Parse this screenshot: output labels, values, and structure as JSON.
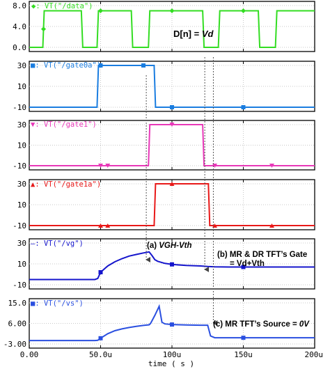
{
  "chart_data": {
    "type": "line",
    "x_unit": "s",
    "xlabel": "time ( s )",
    "xlim": [
      0,
      0.0002
    ],
    "x_ticks": [
      0,
      5e-05,
      0.0001,
      0.00015,
      0.0002
    ],
    "x_tick_labels": [
      "0.00",
      "50.0u",
      "100u",
      "150u",
      "200u"
    ],
    "grid": true,
    "panels": [
      {
        "name": "VT(\"/data\")",
        "legend_marker": "◆",
        "color": "#33dd22",
        "ylim": [
          0,
          8
        ],
        "y_ticks": [
          0,
          4,
          8
        ],
        "y_tick_labels": [
          "0.0",
          "4.0",
          "8.0"
        ],
        "x": [
          0,
          9.5e-06,
          1.05e-05,
          3.65e-05,
          3.75e-05,
          4.75e-05,
          4.85e-05,
          7.15e-05,
          7.25e-05,
          8.35e-05,
          8.45e-05,
          0.0001215,
          0.0001225,
          0.0001325,
          0.0001335,
          0.0001605,
          0.0001615,
          0.0001725,
          0.0001735,
          0.0002
        ],
        "y": [
          0,
          0,
          7,
          7,
          0,
          0,
          7,
          7,
          0,
          0,
          7,
          7,
          0,
          0,
          7,
          7,
          0,
          0,
          7,
          7
        ],
        "marker_x": [
          1e-05,
          5e-05,
          0.0001,
          0.00015
        ]
      },
      {
        "name": "VT(\"/gate0a\")",
        "legend_marker": "■",
        "color": "#1a7de0",
        "ylim": [
          -10,
          30
        ],
        "y_ticks": [
          -10,
          10,
          30
        ],
        "y_tick_labels": [
          "-10",
          "10",
          "30"
        ],
        "x": [
          0,
          4.75e-05,
          4.85e-05,
          8.75e-05,
          8.85e-05,
          0.0002
        ],
        "y": [
          -10,
          -10,
          30,
          30,
          -10,
          -10
        ],
        "marker_x": [
          5e-05,
          8e-05,
          0.0001,
          0.00015
        ]
      },
      {
        "name": "VT(\"/gate1\")",
        "legend_marker": "▼",
        "color": "#e838b8",
        "ylim": [
          -10,
          30
        ],
        "y_ticks": [
          -10,
          10,
          30
        ],
        "y_tick_labels": [
          "-10",
          "10",
          "30"
        ],
        "x": [
          0,
          8.35e-05,
          8.45e-05,
          0.0001215,
          0.0001225,
          0.0002
        ],
        "y": [
          -10,
          -10,
          30,
          30,
          -10,
          -10
        ],
        "marker_x": [
          5e-05,
          5.5e-05,
          0.0001,
          0.00013,
          0.00017
        ]
      },
      {
        "name": "VT(\"/gate1a\")",
        "legend_marker": "▲",
        "color": "#e81818",
        "ylim": [
          -10,
          30
        ],
        "y_ticks": [
          -10,
          10,
          30
        ],
        "y_tick_labels": [
          "-10",
          "10",
          "30"
        ],
        "x": [
          0,
          8.75e-05,
          8.85e-05,
          0.0001255,
          0.0001265,
          0.0002
        ],
        "y": [
          -10,
          -10,
          30,
          30,
          -10,
          -10
        ],
        "marker_x": [
          5e-05,
          5.5e-05,
          0.0001,
          0.00013,
          0.00017
        ]
      },
      {
        "name": "VT(\"/vg\")",
        "legend_marker": "–",
        "color": "#1515cc",
        "ylim": [
          -10,
          30
        ],
        "y_ticks": [
          -10,
          10,
          30
        ],
        "y_tick_labels": [
          "-10",
          "10",
          "30"
        ],
        "x": [
          0,
          4.6e-05,
          4.8e-05,
          5e-05,
          5.5e-05,
          6e-05,
          6.5e-05,
          7e-05,
          7.5e-05,
          8e-05,
          8.4e-05,
          8.6e-05,
          8.8e-05,
          9e-05,
          9.5e-05,
          0.0001,
          0.00011,
          0.00012,
          0.000125,
          0.00013,
          0.00014,
          0.00015,
          0.00016,
          0.00017,
          0.00018,
          0.00019,
          0.0002
        ],
        "y": [
          -5,
          -5,
          -4,
          2,
          8,
          12,
          15,
          17.5,
          19,
          20.5,
          21.5,
          18,
          14,
          12.5,
          10.5,
          9.5,
          8.5,
          8,
          7.5,
          7.2,
          7,
          7,
          7,
          7,
          7,
          7,
          7
        ],
        "marker_x": [
          5e-05,
          0.0001,
          0.00015
        ]
      },
      {
        "name": "VT(\"/vs\")",
        "legend_marker": "■",
        "color": "#2a4fe0",
        "ylim": [
          -3,
          15
        ],
        "y_ticks": [
          -3,
          6,
          15
        ],
        "y_tick_labels": [
          "-3.00",
          "6.00",
          "15.0"
        ],
        "x": [
          0,
          4.6e-05,
          4.8e-05,
          5e-05,
          5.5e-05,
          6e-05,
          6.5e-05,
          7e-05,
          7.5e-05,
          8e-05,
          8.4e-05,
          8.5e-05,
          8.8e-05,
          9.1e-05,
          9.3e-05,
          9.5e-05,
          0.0001,
          0.00011,
          0.00012,
          0.000125,
          0.000127,
          0.00013,
          0.00014,
          0.00015,
          0.00016,
          0.00017,
          0.0002
        ],
        "y": [
          -1.5,
          -1.5,
          -1.4,
          -0.5,
          1.5,
          2.8,
          3.6,
          4.2,
          4.7,
          5.1,
          5.4,
          6,
          9.5,
          13.5,
          6.5,
          5.8,
          5.5,
          5.3,
          5.2,
          5.2,
          0.5,
          -0.3,
          -0.3,
          -0.3,
          -0.3,
          -0.3,
          -0.3
        ],
        "marker_x": [
          5e-05,
          0.0001,
          0.00015
        ]
      }
    ],
    "annotations": [
      {
        "text": "D[n] = ",
        "emph": "Vd",
        "panel": 0
      },
      {
        "text": "(a) ",
        "emph": "VGH-Vth",
        "panel": 4
      },
      {
        "text": "(b) MR & DR TFT’s Gate",
        "panel": 4
      },
      {
        "text": "= Vd+Vth",
        "panel": 4
      },
      {
        "text": "(c) MR TFT’s Source = ",
        "emph": "0V",
        "panel": 5
      }
    ],
    "guide_x": [
      8.2e-05,
      0.000123,
      0.000129
    ]
  }
}
